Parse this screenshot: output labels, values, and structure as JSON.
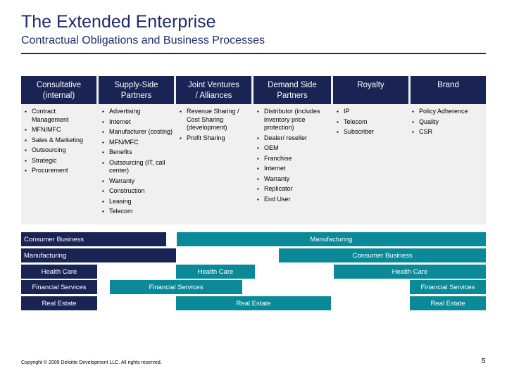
{
  "title": "The Extended Enterprise",
  "subtitle": "Contractual Obligations and Business Processes",
  "columns": [
    {
      "header": "Consultative\n(internal)",
      "items": [
        "Contract Management",
        "MFN/MFC",
        "Sales & Marketing",
        "Outsourcing",
        "Strategic",
        "Procurement"
      ]
    },
    {
      "header": "Supply-Side\nPartners",
      "items": [
        "Advertising",
        "Internet",
        "Manufacturer (costing)",
        "MFN/MFC",
        "Benefits",
        "Outsourcing (IT, call center)",
        "Warranty",
        "Construction",
        "Leasing",
        "Telecom"
      ]
    },
    {
      "header": "Joint Ventures\n/ Alliances",
      "items": [
        "Revenue Sharing / Cost Sharing (development)",
        "Profit Sharing"
      ]
    },
    {
      "header": "Demand Side\nPartners",
      "items": [
        "Distributor (includes inventory price protection)",
        "Dealer/ reseller",
        "OEM",
        "Franchise",
        "Internet",
        "Warranty",
        "Replicator",
        "End User"
      ]
    },
    {
      "header": "Royalty",
      "items": [
        "IP",
        "Telecom",
        "Subscriber"
      ]
    },
    {
      "header": "Brand",
      "items": [
        "Policy Adherence",
        "Quality",
        "CSR"
      ]
    }
  ],
  "bars": {
    "consumer_business_1": "Consumer Business",
    "manufacturing_1": "Manufacturing",
    "manufacturing_2": "Manufacturing",
    "consumer_business_2": "Consumer Business",
    "health_care_1": "Health Care",
    "health_care_2": "Health Care",
    "health_care_3": "Health Care",
    "financial_services_1": "Financial Services",
    "financial_services_2": "Financial Services",
    "financial_services_3": "Financial Services",
    "real_estate_1": "Real Estate",
    "real_estate_2": "Real Estate",
    "real_estate_3": "Real Estate"
  },
  "colors": {
    "navy": "#1a2454",
    "teal": "#0a8a98",
    "title": "#1f2a6b"
  },
  "bullet_icon": "square-bullet",
  "footer": "Copyright © 2009 Deloitte Development LLC. All rights reserved.",
  "page_number": "5"
}
